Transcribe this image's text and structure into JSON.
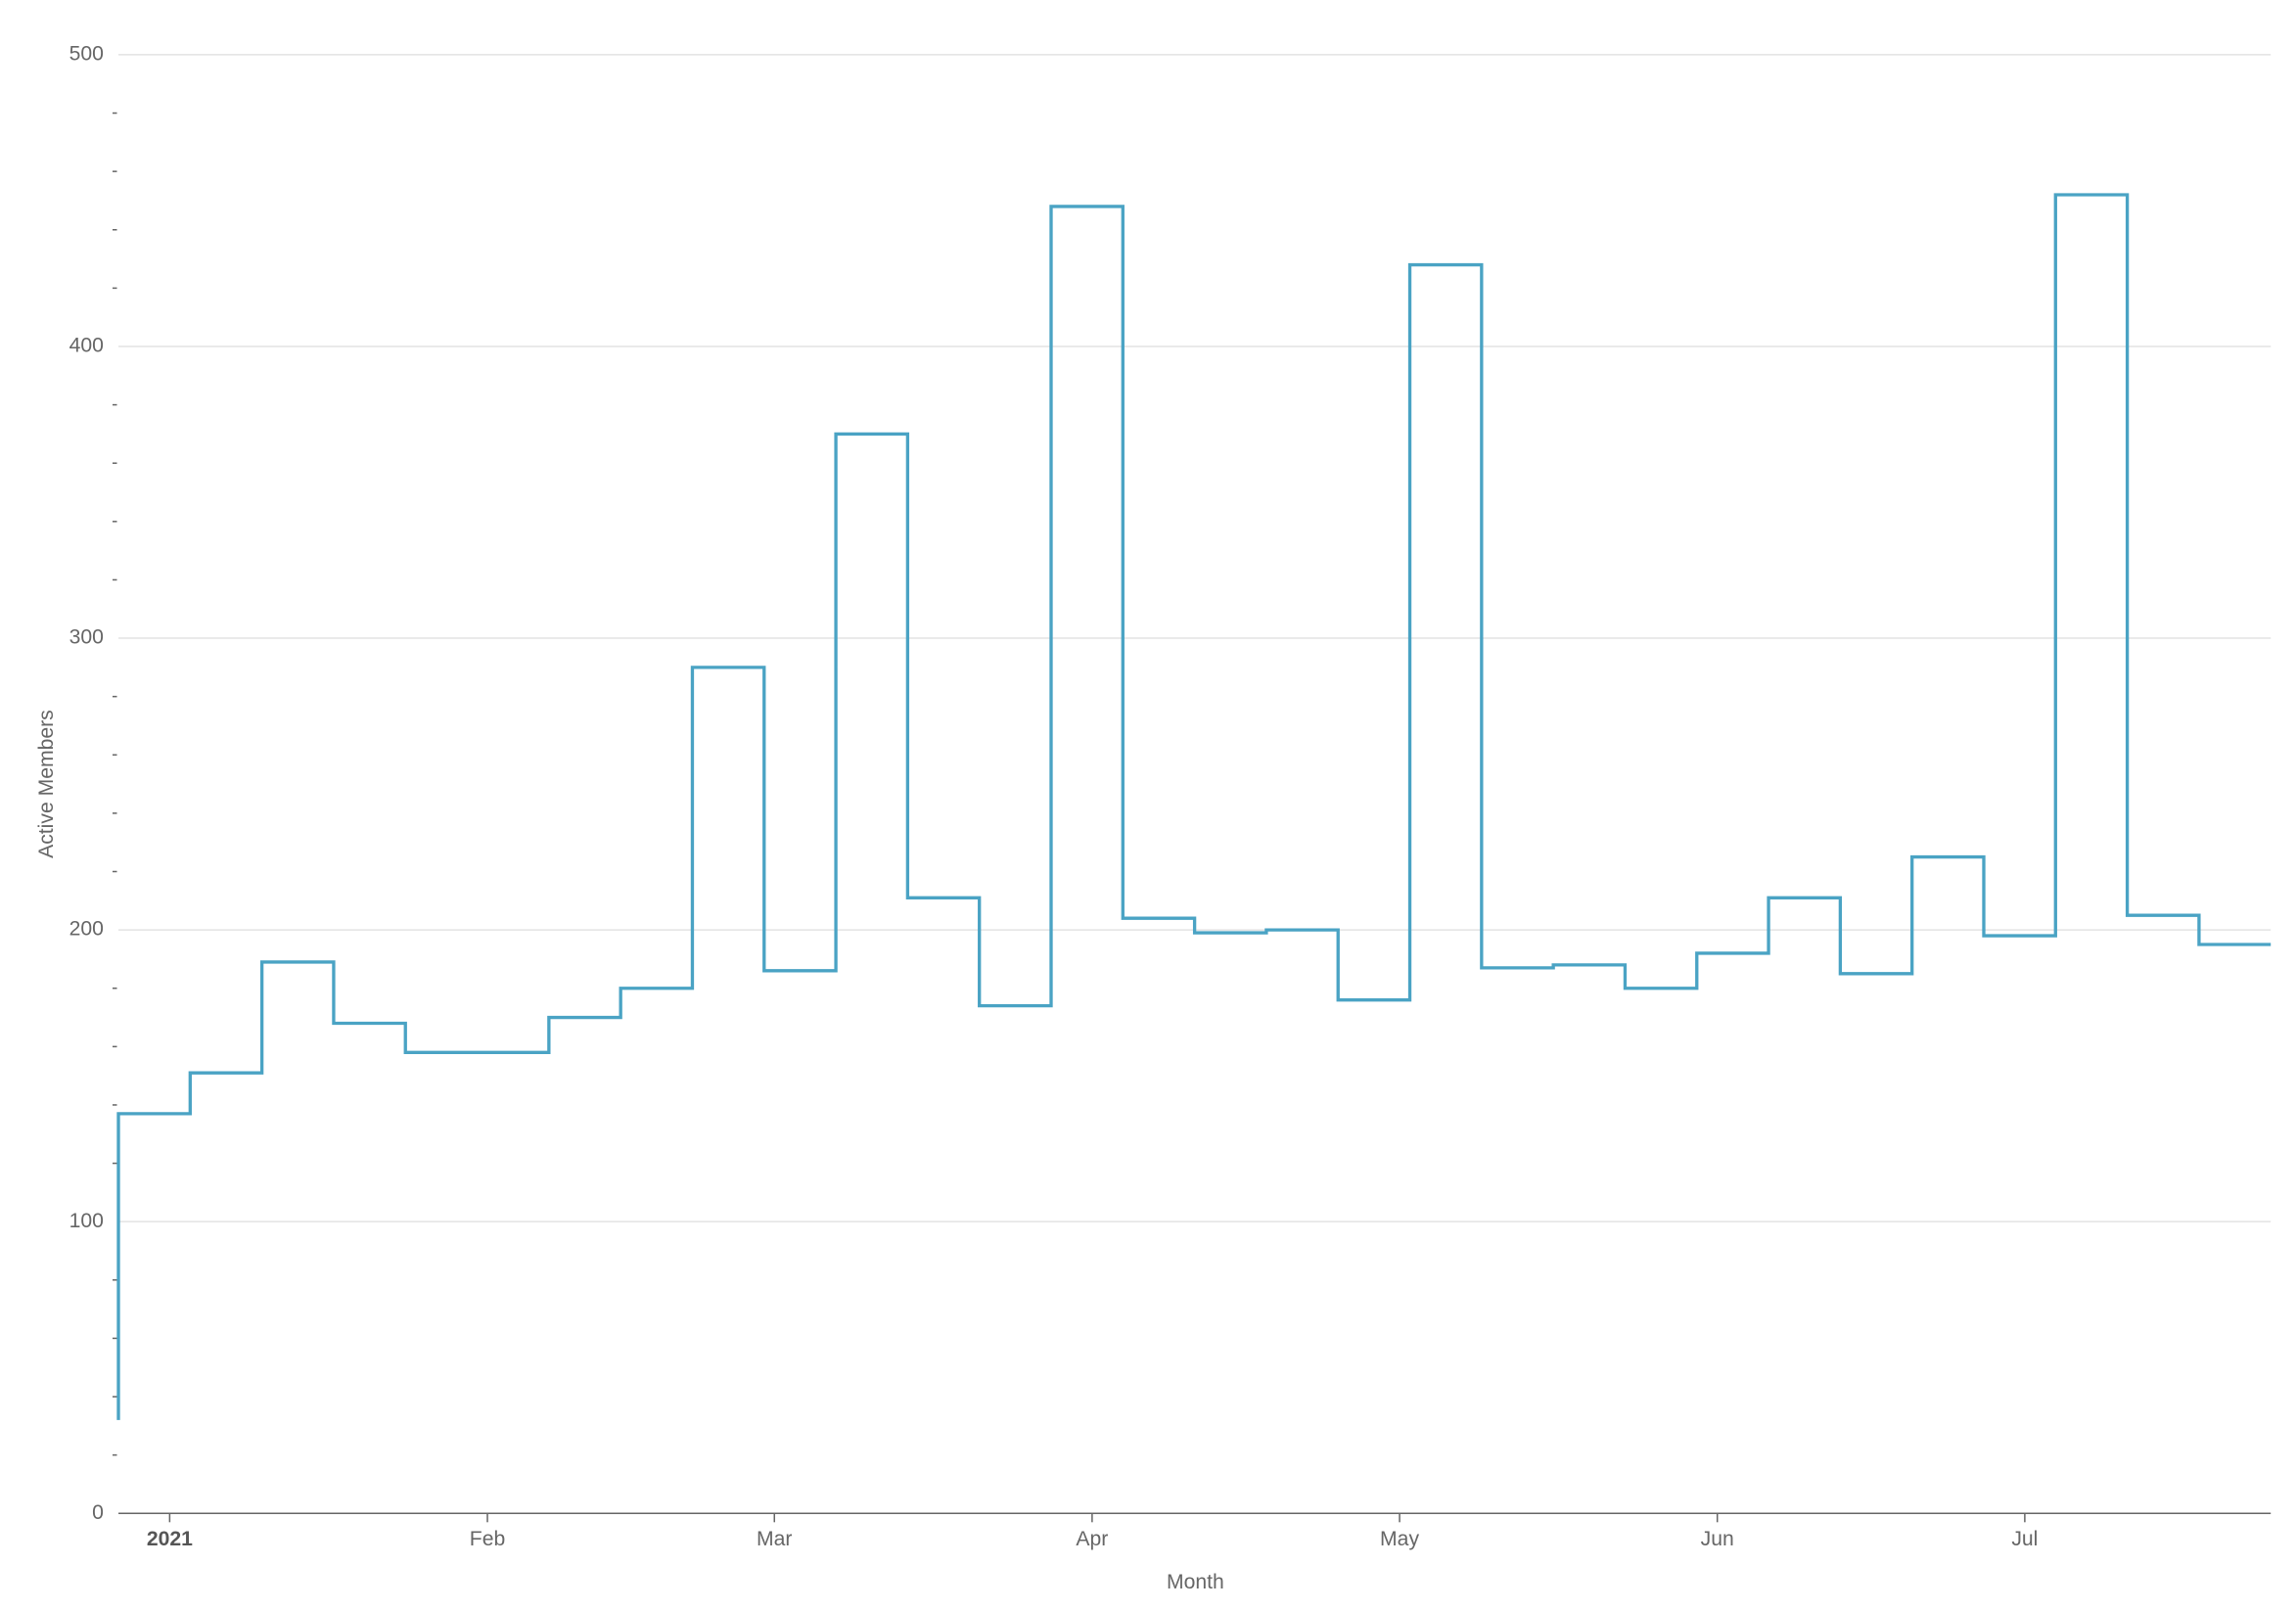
{
  "chart_data": {
    "type": "step",
    "y_label": "Active Members",
    "x_label": "Month",
    "x": [
      "2020-12-27",
      "2020-12-27",
      "2021-01-03",
      "2021-01-10",
      "2021-01-17",
      "2021-01-24",
      "2021-01-31",
      "2021-02-07",
      "2021-02-14",
      "2021-02-21",
      "2021-02-28",
      "2021-03-07",
      "2021-03-14",
      "2021-03-21",
      "2021-03-28",
      "2021-04-04",
      "2021-04-11",
      "2021-04-18",
      "2021-04-25",
      "2021-05-02",
      "2021-05-09",
      "2021-05-16",
      "2021-05-23",
      "2021-05-30",
      "2021-06-06",
      "2021-06-13",
      "2021-06-20",
      "2021-06-27",
      "2021-07-04",
      "2021-07-11",
      "2021-07-18"
    ],
    "series": [
      {
        "name": "Active Members",
        "color": "#4aa3c4",
        "values": [
          32,
          137,
          151,
          189,
          168,
          158,
          158,
          170,
          180,
          290,
          186,
          370,
          211,
          174,
          448,
          204,
          199,
          200,
          176,
          428,
          187,
          188,
          180,
          192,
          211,
          185,
          225,
          198,
          452,
          205,
          195
        ]
      }
    ],
    "xlim": [
      "2020-12-27",
      "2021-07-25"
    ],
    "xticks": [
      {
        "value": "2021-01-01",
        "label": "2021"
      },
      {
        "value": "2021-02-01",
        "label": "Feb"
      },
      {
        "value": "2021-03-01",
        "label": "Mar"
      },
      {
        "value": "2021-04-01",
        "label": "Apr"
      },
      {
        "value": "2021-05-01",
        "label": "May"
      },
      {
        "value": "2021-06-01",
        "label": "Jun"
      },
      {
        "value": "2021-07-01",
        "label": "Jul"
      }
    ],
    "ylim": [
      0,
      500
    ],
    "yticks": [
      0,
      100,
      200,
      300,
      400,
      500
    ],
    "yminorticks": [
      20,
      40,
      60,
      80,
      120,
      140,
      160,
      180,
      220,
      240,
      260,
      280,
      320,
      340,
      360,
      380,
      420,
      440,
      460,
      480
    ],
    "grid": true
  }
}
